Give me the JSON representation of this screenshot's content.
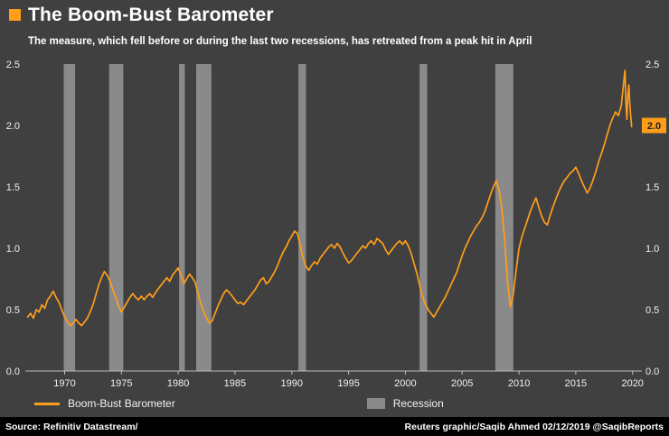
{
  "header": {
    "title": "The Boom-Bust Barometer",
    "subtitle": "The measure, which fell before or during the last two recessions, has retreated from a peak hit in April"
  },
  "legend": {
    "series": "Boom-Bust Barometer",
    "recession": "Recession"
  },
  "footer": {
    "source": "Source: Refinitiv Datastream/",
    "credit": "Reuters graphic/Saqib Ahmed 02/12/2019 @SaqibReports"
  },
  "colors": {
    "background": "#404040",
    "footer_bg": "#000000",
    "line": "#ff9e1b",
    "recession": "#8a8a8a",
    "axis": "#bdbdbd",
    "tick_text": "#f0f0f0",
    "badge_bg": "#ff9e1b",
    "badge_text": "#1f1f1f",
    "brand": "#ff9e1b"
  },
  "chart_data": {
    "type": "line",
    "title": "The Boom-Bust Barometer",
    "xlim": [
      1966.7,
      2020.5
    ],
    "ylim": [
      0,
      2.5
    ],
    "grid": false,
    "legend_position": "bottom",
    "y_tick_values": [
      0,
      0.5,
      1.0,
      1.5,
      2.0,
      2.5
    ],
    "y_tick_labels": [
      "0.0",
      "0.5",
      "1.0",
      "1.5",
      "2.0",
      "2.5"
    ],
    "x_tick_values": [
      1970,
      1975,
      1980,
      1985,
      1990,
      1995,
      2000,
      2005,
      2010,
      2015,
      2020
    ],
    "x_tick_labels": [
      "1970",
      "1975",
      "1980",
      "1985",
      "1990",
      "1995",
      "2000",
      "2005",
      "2010",
      "2015",
      "2020"
    ],
    "badge": {
      "label": "2.0",
      "value": 2.0
    },
    "recessions": [
      {
        "start": 1969.92,
        "end": 1970.92
      },
      {
        "start": 1973.92,
        "end": 1975.17
      },
      {
        "start": 1980.08,
        "end": 1980.58
      },
      {
        "start": 1981.58,
        "end": 1982.92
      },
      {
        "start": 1990.58,
        "end": 1991.25
      },
      {
        "start": 2001.25,
        "end": 2001.92
      },
      {
        "start": 2007.92,
        "end": 2009.5
      }
    ],
    "series": [
      {
        "name": "Boom-Bust Barometer",
        "x_start": 1966.75,
        "x_step": 0.25,
        "y": [
          0.44,
          0.47,
          0.43,
          0.5,
          0.48,
          0.54,
          0.51,
          0.58,
          0.61,
          0.65,
          0.6,
          0.56,
          0.5,
          0.44,
          0.4,
          0.37,
          0.39,
          0.42,
          0.39,
          0.37,
          0.4,
          0.43,
          0.48,
          0.54,
          0.62,
          0.7,
          0.76,
          0.81,
          0.78,
          0.73,
          0.66,
          0.6,
          0.53,
          0.48,
          0.52,
          0.56,
          0.6,
          0.63,
          0.6,
          0.58,
          0.61,
          0.58,
          0.61,
          0.63,
          0.6,
          0.64,
          0.67,
          0.7,
          0.73,
          0.76,
          0.73,
          0.78,
          0.81,
          0.84,
          0.78,
          0.71,
          0.75,
          0.79,
          0.76,
          0.72,
          0.63,
          0.55,
          0.48,
          0.43,
          0.39,
          0.41,
          0.47,
          0.53,
          0.58,
          0.63,
          0.66,
          0.64,
          0.61,
          0.58,
          0.55,
          0.56,
          0.54,
          0.57,
          0.6,
          0.63,
          0.66,
          0.7,
          0.74,
          0.76,
          0.71,
          0.73,
          0.77,
          0.81,
          0.86,
          0.92,
          0.97,
          1.01,
          1.06,
          1.1,
          1.14,
          1.12,
          1.02,
          0.92,
          0.85,
          0.82,
          0.86,
          0.89,
          0.87,
          0.92,
          0.95,
          0.98,
          1.01,
          1.03,
          1.0,
          1.04,
          1.01,
          0.96,
          0.92,
          0.88,
          0.9,
          0.93,
          0.96,
          0.99,
          1.02,
          1.0,
          1.04,
          1.06,
          1.03,
          1.08,
          1.06,
          1.04,
          0.99,
          0.95,
          0.98,
          1.01,
          1.04,
          1.06,
          1.03,
          1.06,
          1.02,
          0.96,
          0.88,
          0.8,
          0.7,
          0.61,
          0.55,
          0.5,
          0.47,
          0.44,
          0.48,
          0.52,
          0.56,
          0.6,
          0.65,
          0.7,
          0.75,
          0.8,
          0.87,
          0.94,
          1.0,
          1.05,
          1.1,
          1.14,
          1.18,
          1.21,
          1.25,
          1.3,
          1.37,
          1.44,
          1.5,
          1.55,
          1.47,
          1.32,
          1.05,
          0.72,
          0.52,
          0.63,
          0.82,
          1.0,
          1.09,
          1.16,
          1.23,
          1.3,
          1.36,
          1.41,
          1.33,
          1.26,
          1.21,
          1.19,
          1.27,
          1.34,
          1.4,
          1.46,
          1.51,
          1.55,
          1.58,
          1.61,
          1.63,
          1.66,
          1.61,
          1.55,
          1.5,
          1.45,
          1.49,
          1.55,
          1.62,
          1.7,
          1.77,
          1.84,
          1.92,
          2.0,
          2.06,
          2.11,
          2.08,
          2.16
        ],
        "tail": [
          [
            2019.25,
            2.38
          ],
          [
            2019.33,
            2.45
          ],
          [
            2019.42,
            2.18
          ],
          [
            2019.5,
            2.05
          ],
          [
            2019.58,
            2.24
          ],
          [
            2019.67,
            2.33
          ],
          [
            2019.75,
            2.18
          ],
          [
            2019.83,
            2.08
          ],
          [
            2019.92,
            1.99
          ]
        ]
      }
    ]
  }
}
